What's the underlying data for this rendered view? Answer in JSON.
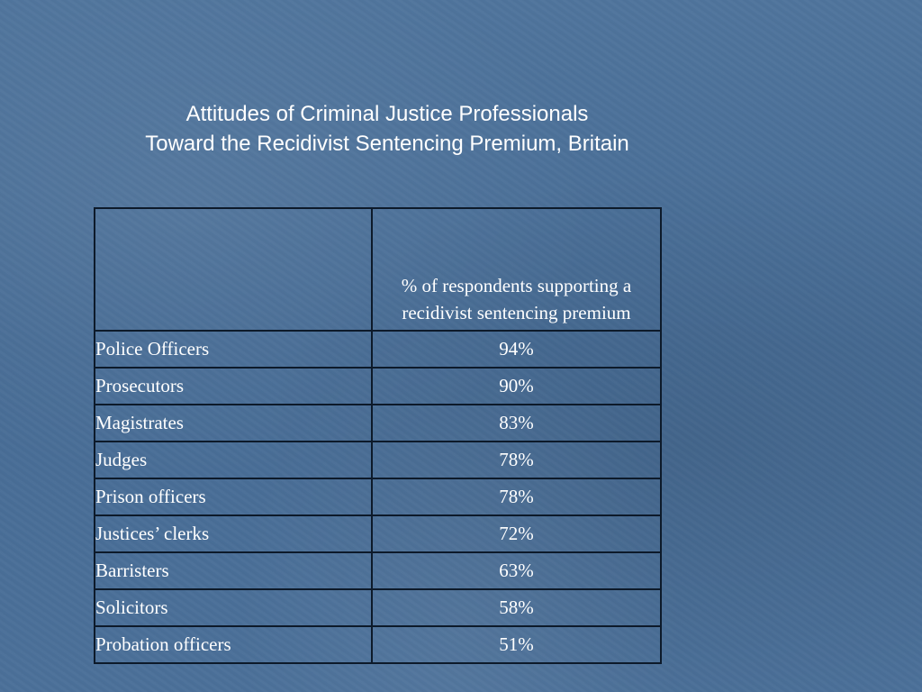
{
  "title": {
    "line1": "Attitudes of Criminal Justice Professionals",
    "line2": "Toward the Recidivist Sentencing Premium, Britain"
  },
  "table": {
    "corner_header": "",
    "column_header": "% of respondents supporting a recidivist sentencing premium",
    "rows": [
      {
        "label": "Police Officers",
        "value": "94%"
      },
      {
        "label": "Prosecutors",
        "value": "90%"
      },
      {
        "label": "Magistrates",
        "value": "83%"
      },
      {
        "label": "Judges",
        "value": "78%"
      },
      {
        "label": "Prison officers",
        "value": "78%"
      },
      {
        "label": "Justices’ clerks",
        "value": "72%"
      },
      {
        "label": "Barristers",
        "value": "63%"
      },
      {
        "label": "Solicitors",
        "value": "58%"
      },
      {
        "label": "Probation officers",
        "value": "51%"
      }
    ]
  }
}
